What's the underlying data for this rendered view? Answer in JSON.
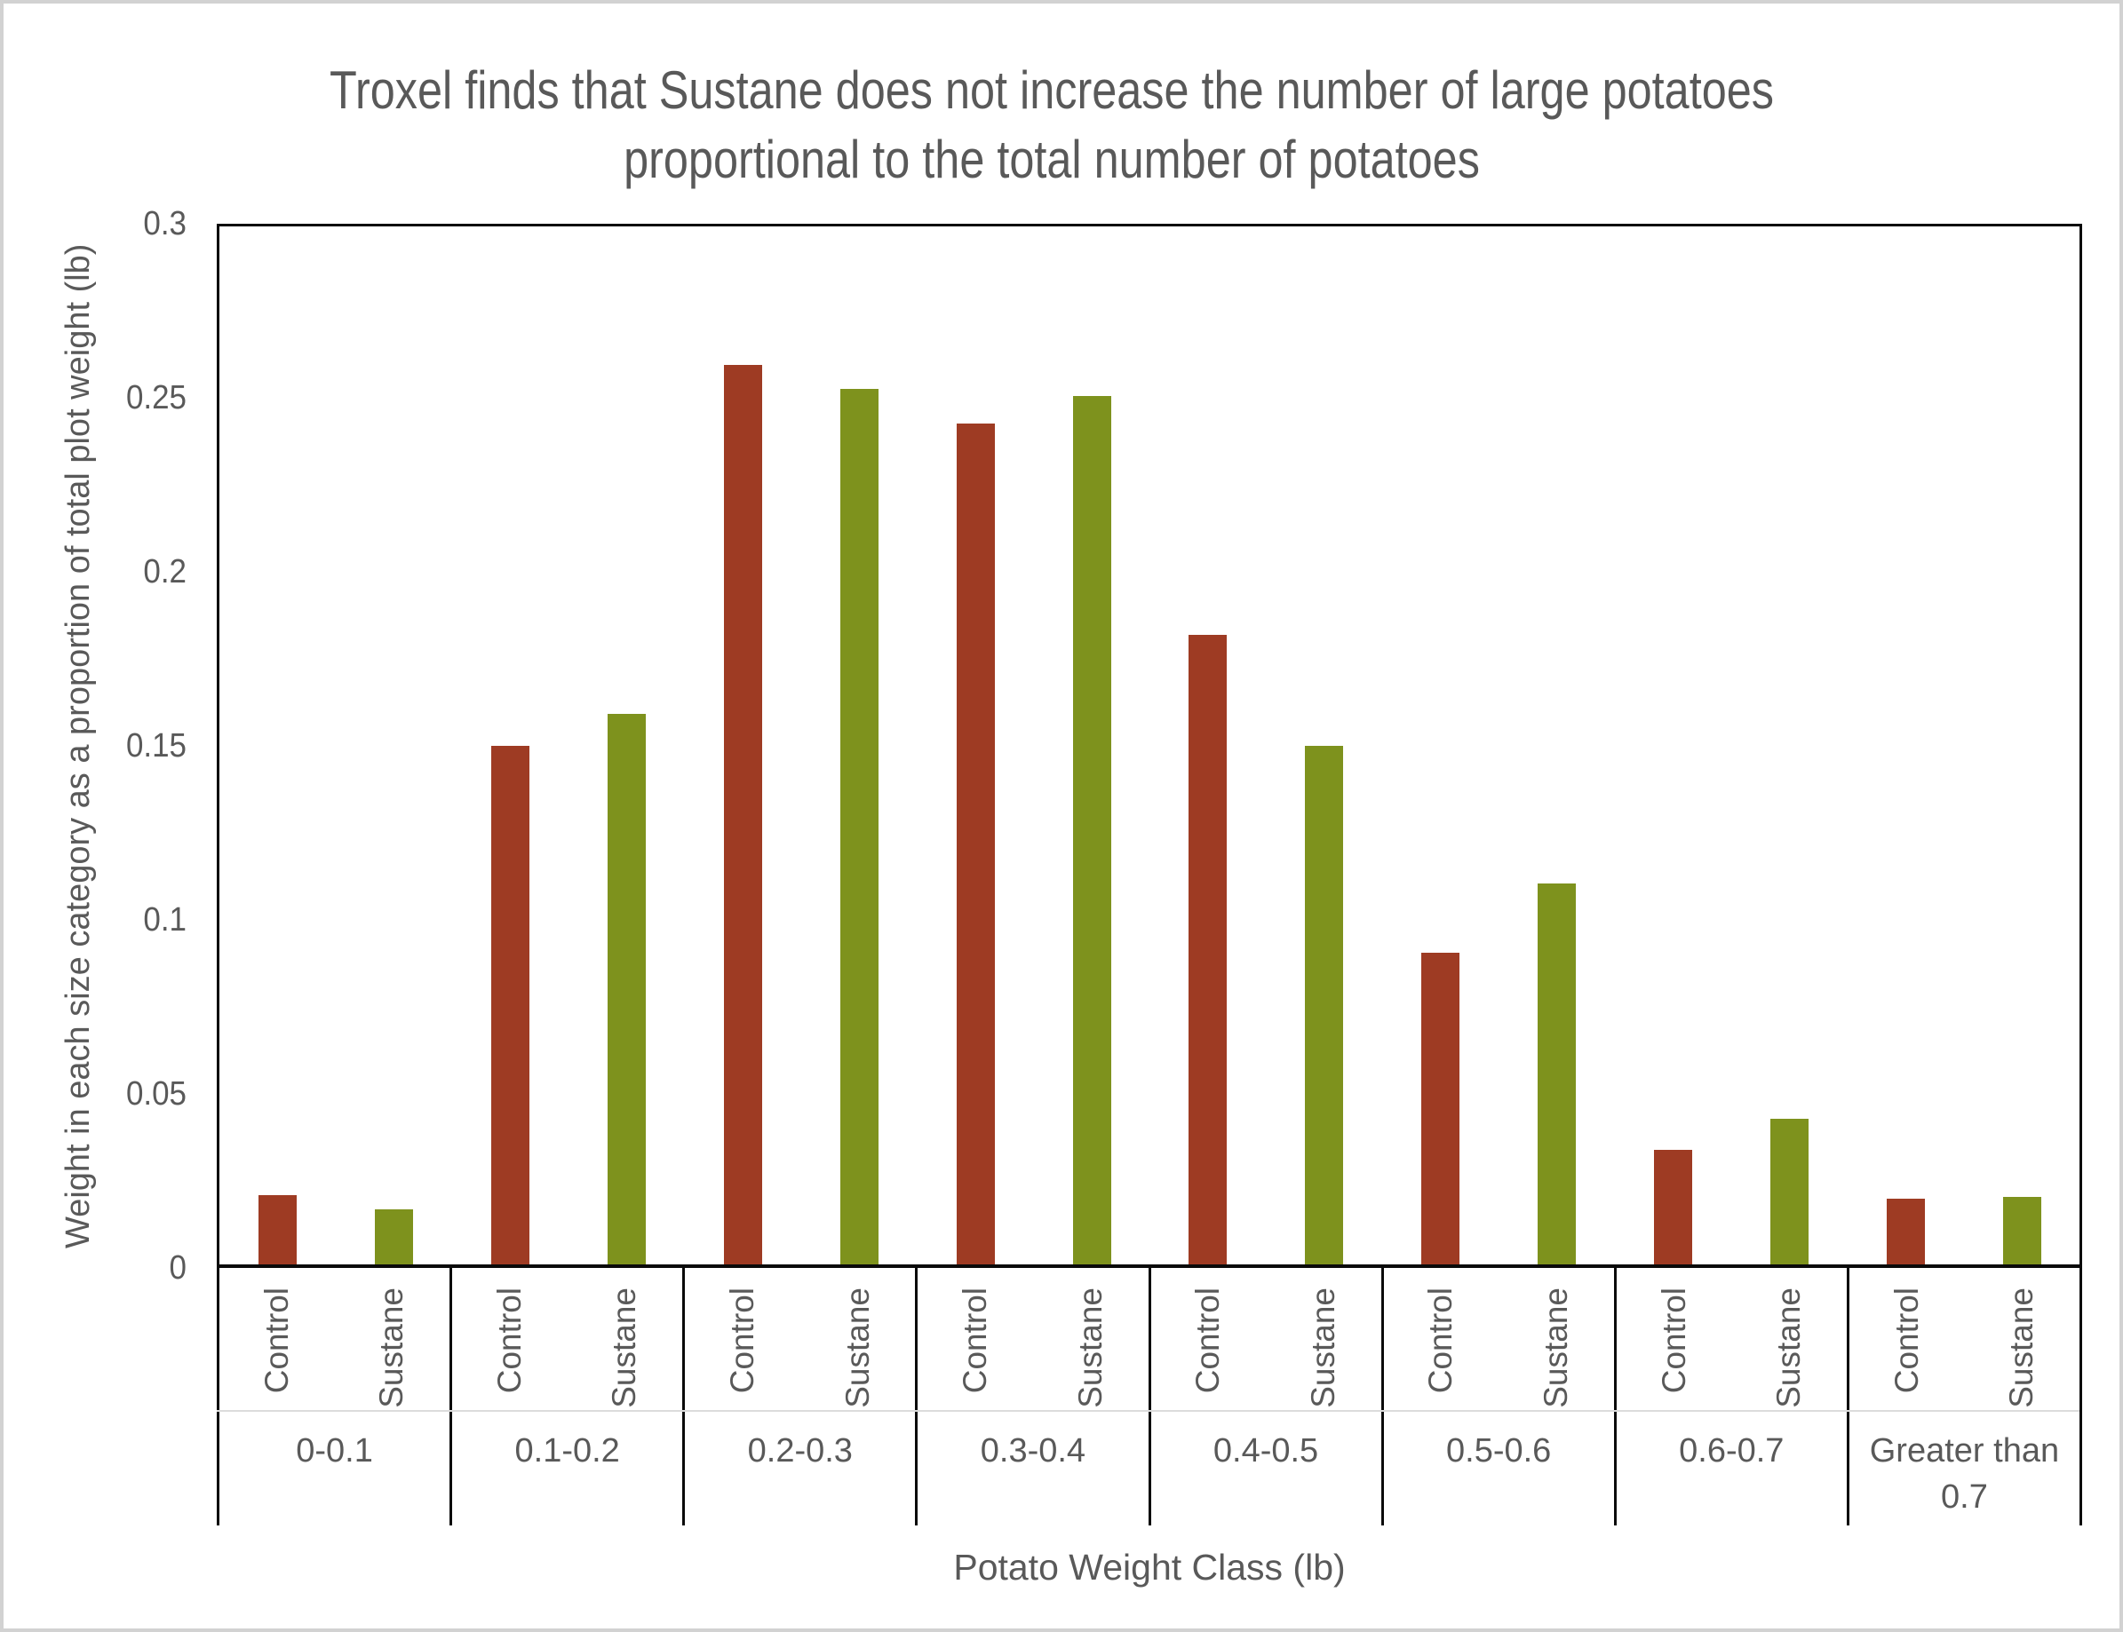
{
  "title": {
    "line1": "Troxel finds that Sustane does not increase the number of large potatoes",
    "line2": "proportional to the total number of potatoes"
  },
  "y_axis_title": "Weight in each size category as a proportion of total plot weight (lb)",
  "x_axis_title": "Potato Weight Class (lb)",
  "chart_data": {
    "type": "bar",
    "title": "Troxel finds that Sustane does not increase the number of large potatoes proportional to the total number of potatoes",
    "xlabel": "Potato Weight Class (lb)",
    "ylabel": "Weight in each size category as a proportion of total plot weight (lb)",
    "categories": [
      "0-0.1",
      "0.1-0.2",
      "0.2-0.3",
      "0.3-0.4",
      "0.4-0.5",
      "0.5-0.6",
      "0.6-0.7",
      "Greater than 0.7"
    ],
    "series": [
      {
        "name": "Control",
        "color": "#9E3B23",
        "values": [
          0.02,
          0.15,
          0.26,
          0.243,
          0.182,
          0.09,
          0.033,
          0.019
        ]
      },
      {
        "name": "Sustane",
        "color": "#7E921D",
        "values": [
          0.016,
          0.159,
          0.253,
          0.251,
          0.15,
          0.11,
          0.042,
          0.0195
        ]
      }
    ],
    "ylim": [
      0,
      0.3
    ],
    "yticks": [
      "0",
      "0.05",
      "0.1",
      "0.15",
      "0.2",
      "0.25",
      "0.3"
    ],
    "grid": false,
    "legend_position": "none",
    "series_labels_shown_below_each_bar": true,
    "axis_line_color": "#0a0a0a",
    "text_color": "#595959"
  }
}
